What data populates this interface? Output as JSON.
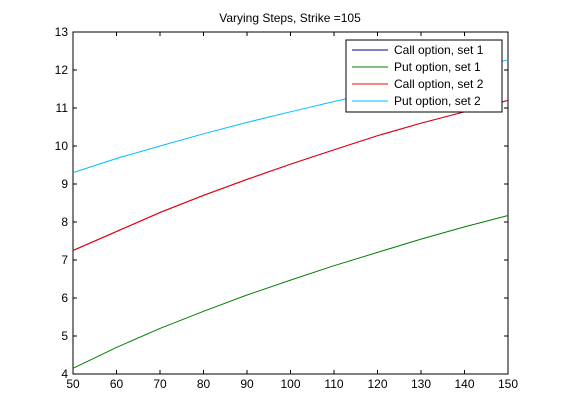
{
  "chart_data": {
    "type": "line",
    "title": "Varying Steps, Strike =105",
    "xlabel": "",
    "ylabel": "",
    "xlim": [
      50,
      150
    ],
    "ylim": [
      4,
      13
    ],
    "x_ticks": [
      50,
      60,
      70,
      80,
      90,
      100,
      110,
      120,
      130,
      140,
      150
    ],
    "y_ticks": [
      4,
      5,
      6,
      7,
      8,
      9,
      10,
      11,
      12,
      13
    ],
    "grid": false,
    "legend_position": "top-right",
    "x": [
      50,
      60,
      70,
      80,
      90,
      100,
      110,
      120,
      130,
      140,
      150
    ],
    "series": [
      {
        "name": "Call option, set 1",
        "color": "#00008b",
        "values": [
          7.25,
          7.75,
          8.25,
          8.7,
          9.12,
          9.52,
          9.9,
          10.27,
          10.6,
          10.9,
          11.2
        ]
      },
      {
        "name": "Put option, set 1",
        "color": "#008000",
        "values": [
          4.15,
          4.7,
          5.2,
          5.65,
          6.08,
          6.47,
          6.85,
          7.2,
          7.55,
          7.87,
          8.17
        ]
      },
      {
        "name": "Call option, set 2",
        "color": "#ff0000",
        "values": [
          7.25,
          7.75,
          8.25,
          8.7,
          9.12,
          9.52,
          9.9,
          10.27,
          10.6,
          10.9,
          11.2
        ]
      },
      {
        "name": "Put option, set 2",
        "color": "#00bfff",
        "values": [
          9.3,
          9.67,
          10.0,
          10.32,
          10.62,
          10.9,
          11.17,
          11.43,
          11.7,
          11.97,
          12.27
        ]
      }
    ]
  }
}
